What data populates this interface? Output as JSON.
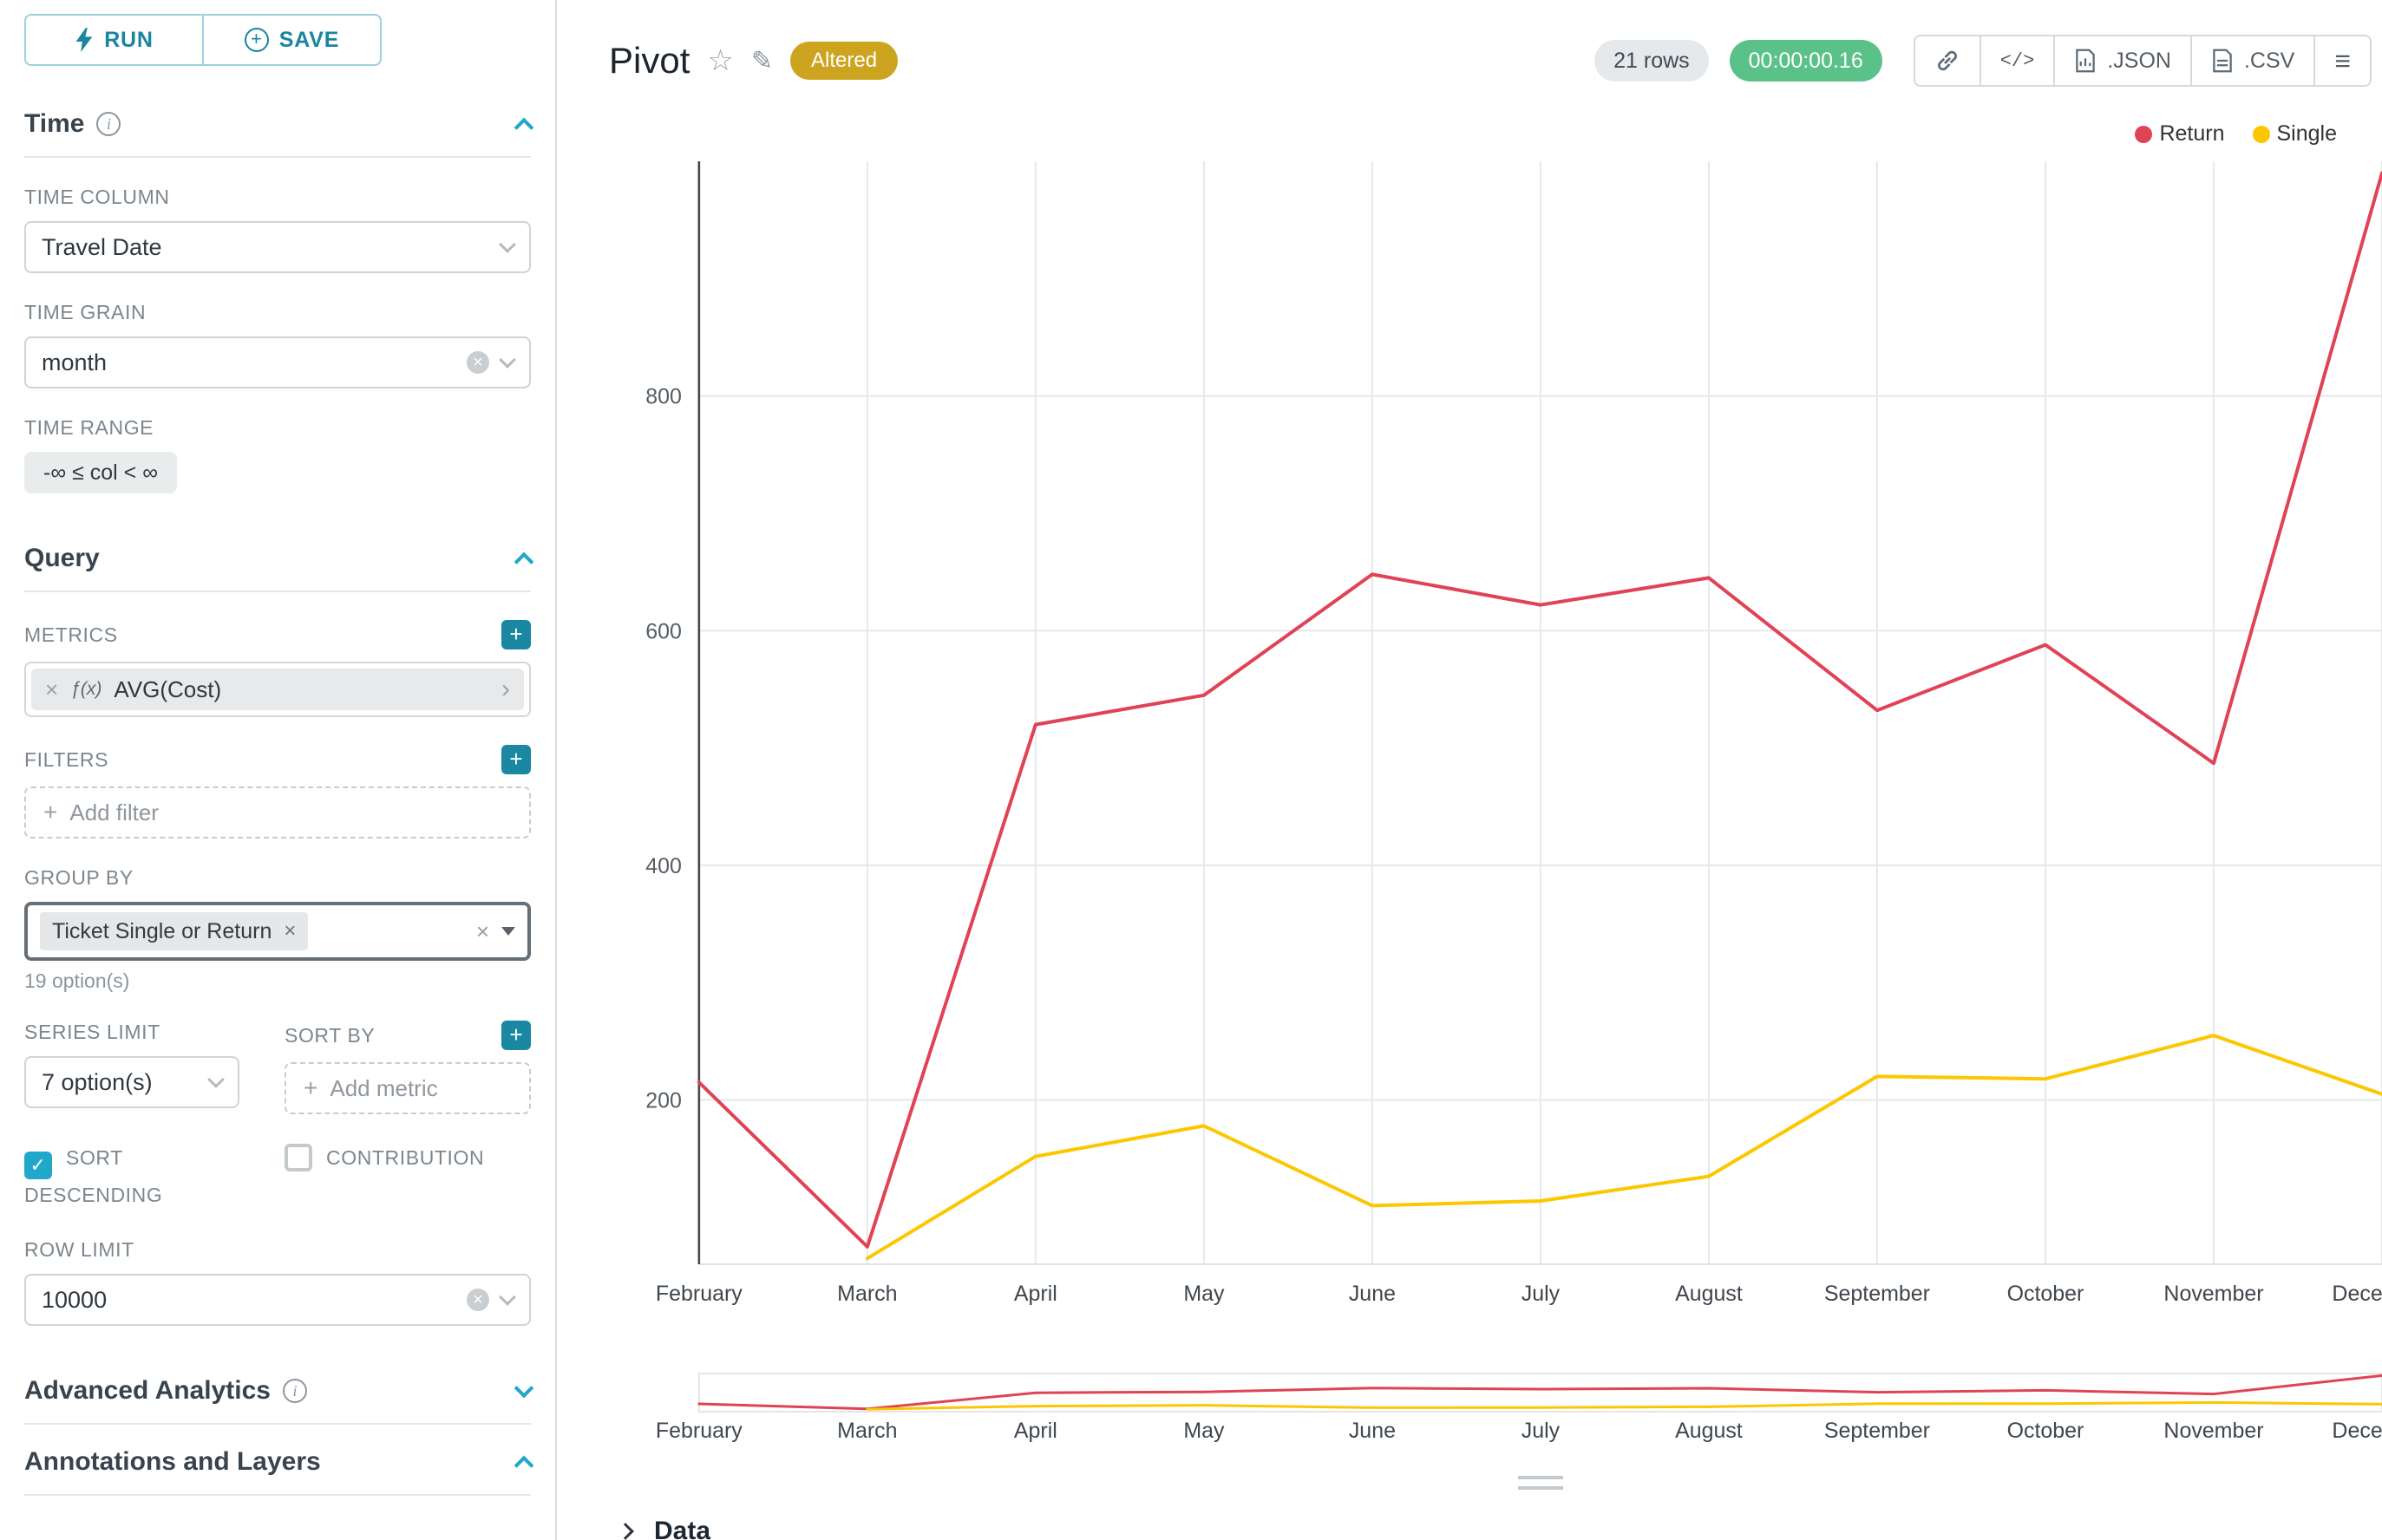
{
  "icons": {
    "plus": "+",
    "info": "i",
    "clear": "×",
    "remove": "×",
    "caret_right": "›",
    "star": "☆",
    "edit": "✎",
    "menu": "≡",
    "code": "</>",
    "check": "✓"
  },
  "colors": {
    "accent": "#20a7c9",
    "success": "#5ac189",
    "altered_badge": "#cda41f",
    "series_return": "#e04355",
    "series_single": "#fcc700"
  },
  "sidebar": {
    "run_label": "RUN",
    "save_label": "SAVE",
    "sections": {
      "time": {
        "title": "Time"
      },
      "query": {
        "title": "Query"
      },
      "advanced": {
        "title": "Advanced Analytics"
      },
      "annotations": {
        "title": "Annotations and Layers"
      }
    },
    "controls": {
      "time_column": {
        "label": "TIME COLUMN",
        "value": "Travel Date"
      },
      "time_grain": {
        "label": "TIME GRAIN",
        "value": "month"
      },
      "time_range": {
        "label": "TIME RANGE",
        "value": "-∞ ≤ col < ∞"
      },
      "metrics": {
        "label": "METRICS",
        "prefix": "ƒ(x)",
        "value": "AVG(Cost)"
      },
      "filters": {
        "label": "FILTERS",
        "placeholder": "Add filter"
      },
      "group_by": {
        "label": "GROUP BY",
        "tag": "Ticket Single or Return",
        "hint": "19 option(s)"
      },
      "series_limit": {
        "label": "SERIES LIMIT",
        "value": "7 option(s)"
      },
      "sort_by": {
        "label": "SORT BY",
        "placeholder": "Add metric"
      },
      "sort_descending": {
        "label": "SORT DESCENDING",
        "checked": true
      },
      "contribution": {
        "label": "CONTRIBUTION",
        "checked": false
      },
      "row_limit": {
        "label": "ROW LIMIT",
        "value": "10000"
      }
    }
  },
  "header": {
    "title": "Pivot",
    "altered_badge": "Altered",
    "rows_badge": "21 rows",
    "timer_badge": "00:00:00.16",
    "json_label": ".JSON",
    "csv_label": ".CSV"
  },
  "data_panel": {
    "title": "Data"
  },
  "chart_data": {
    "type": "line",
    "title": "Pivot",
    "categories": [
      "February",
      "March",
      "April",
      "May",
      "June",
      "July",
      "August",
      "September",
      "October",
      "November",
      "December"
    ],
    "series": [
      {
        "name": "Return",
        "color": "#e04355",
        "values": [
          215,
          75,
          520,
          545,
          648,
          622,
          645,
          532,
          588,
          487,
          990
        ]
      },
      {
        "name": "Single",
        "color": "#fcc700",
        "values": [
          null,
          65,
          152,
          178,
          110,
          114,
          135,
          220,
          218,
          255,
          205
        ]
      }
    ],
    "xlabel": "",
    "ylabel": "",
    "yticks": [
      200,
      400,
      600,
      800
    ],
    "ylim": [
      60,
      1000
    ],
    "grid": true,
    "legend_position": "top-right",
    "has_zoom_preview": true
  }
}
